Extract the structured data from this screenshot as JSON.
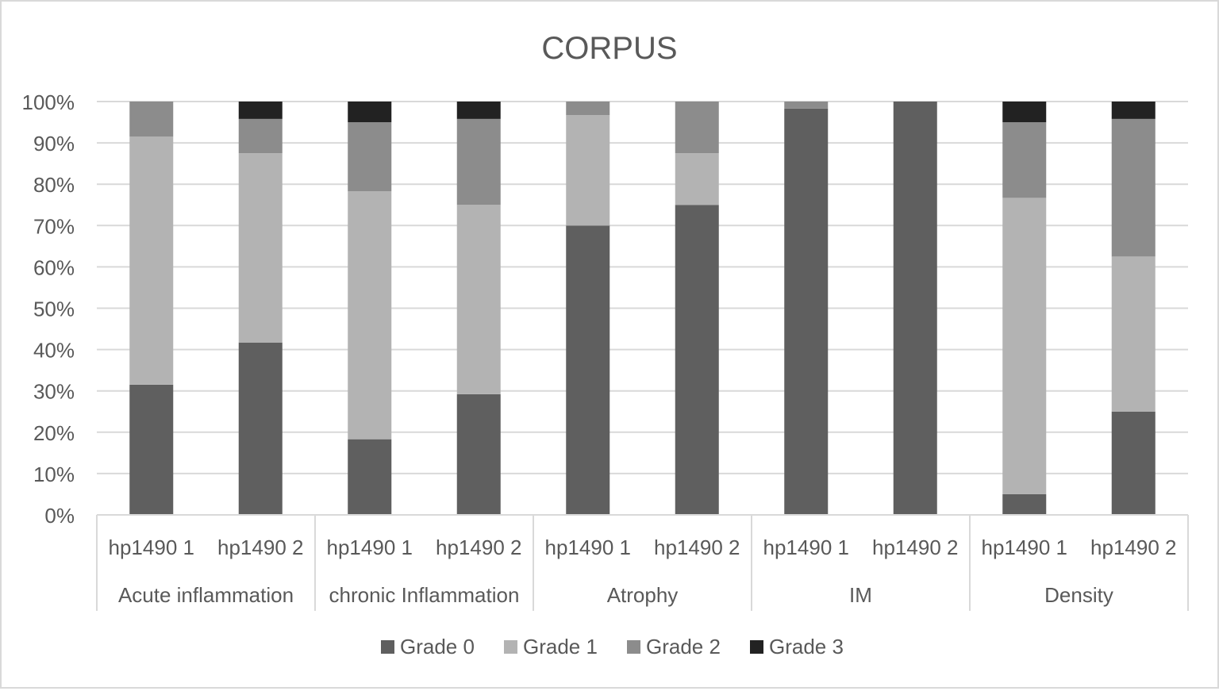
{
  "chart_data": {
    "type": "bar",
    "stacked": "percent",
    "title": "CORPUS",
    "xlabel": "",
    "ylabel": "",
    "ylim": [
      0,
      100
    ],
    "yticks": [
      "0%",
      "10%",
      "20%",
      "30%",
      "40%",
      "50%",
      "60%",
      "70%",
      "80%",
      "90%",
      "100%"
    ],
    "grid": true,
    "legend_position": "bottom",
    "groups": [
      "Acute inflammation",
      "chronic Inflammation",
      "Atrophy",
      "IM",
      "Density"
    ],
    "categories": [
      "hp1490 1",
      "hp1490 2",
      "hp1490 1",
      "hp1490 2",
      "hp1490 1",
      "hp1490 2",
      "hp1490 1",
      "hp1490 2",
      "hp1490 1",
      "hp1490 2"
    ],
    "series": [
      {
        "name": "Grade 0",
        "color": "#5f5f5f",
        "values": [
          31.5,
          41.7,
          18.3,
          29.2,
          70.0,
          75.0,
          98.3,
          100.0,
          5.0,
          25.0
        ]
      },
      {
        "name": "Grade 1",
        "color": "#b3b3b3",
        "values": [
          60.0,
          45.8,
          60.0,
          45.8,
          26.7,
          12.5,
          0.0,
          0.0,
          71.7,
          37.5
        ]
      },
      {
        "name": "Grade 2",
        "color": "#8c8c8c",
        "values": [
          8.5,
          8.3,
          16.7,
          20.8,
          3.3,
          12.5,
          1.7,
          0.0,
          18.3,
          33.3
        ]
      },
      {
        "name": "Grade 3",
        "color": "#222222",
        "values": [
          0.0,
          4.2,
          5.0,
          4.2,
          0.0,
          0.0,
          0.0,
          0.0,
          5.0,
          4.2
        ]
      }
    ]
  }
}
